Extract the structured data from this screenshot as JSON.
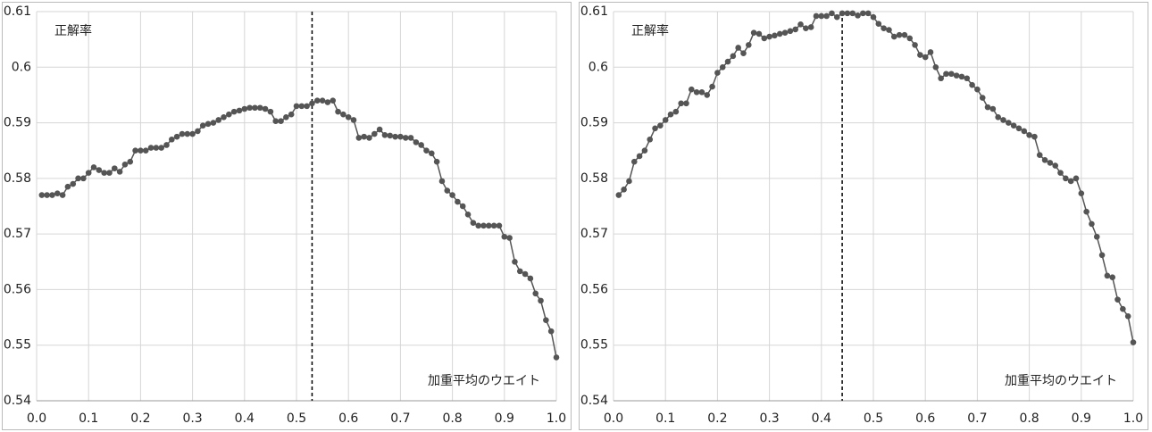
{
  "chart_data": [
    {
      "type": "line",
      "y_label": "正解率",
      "x_label": "加重平均のウエイト",
      "vline": 0.53,
      "grid": true,
      "xlim": [
        0,
        1
      ],
      "ylim": [
        0.54,
        0.61
      ],
      "xticks": [
        {
          "value": 0,
          "label": "0.0"
        },
        0.1,
        0.2,
        0.3,
        0.4,
        0.5,
        0.6,
        0.7,
        0.8,
        0.9,
        {
          "value": 1,
          "label": "1.0"
        }
      ],
      "yticks": [
        0.54,
        0.55,
        0.56,
        0.57,
        0.58,
        0.59,
        0.6,
        0.61
      ],
      "series": [
        {
          "color": "#555555",
          "x": [
            0.01,
            0.02,
            0.03,
            0.04,
            0.05,
            0.06,
            0.07,
            0.08,
            0.09,
            0.1,
            0.11,
            0.12,
            0.13,
            0.14,
            0.15,
            0.16,
            0.17,
            0.18,
            0.19,
            0.2,
            0.21,
            0.22,
            0.23,
            0.24,
            0.25,
            0.26,
            0.27,
            0.28,
            0.29,
            0.3,
            0.31,
            0.32,
            0.33,
            0.34,
            0.35,
            0.36,
            0.37,
            0.38,
            0.39,
            0.4,
            0.41,
            0.42,
            0.43,
            0.44,
            0.45,
            0.46,
            0.47,
            0.48,
            0.49,
            0.5,
            0.51,
            0.52,
            0.53,
            0.54,
            0.55,
            0.56,
            0.57,
            0.58,
            0.59,
            0.6,
            0.61,
            0.62,
            0.63,
            0.64,
            0.65,
            0.66,
            0.67,
            0.68,
            0.69,
            0.7,
            0.71,
            0.72,
            0.73,
            0.74,
            0.75,
            0.76,
            0.77,
            0.78,
            0.79,
            0.8,
            0.81,
            0.82,
            0.83,
            0.84,
            0.85,
            0.86,
            0.87,
            0.88,
            0.89,
            0.9,
            0.91,
            0.92,
            0.93,
            0.94,
            0.95,
            0.96,
            0.97,
            0.98,
            0.99,
            1.0
          ],
          "values": [
            0.577,
            0.577,
            0.577,
            0.5773,
            0.577,
            0.5785,
            0.579,
            0.58,
            0.58,
            0.581,
            0.582,
            0.5815,
            0.581,
            0.581,
            0.5818,
            0.5812,
            0.5825,
            0.583,
            0.585,
            0.585,
            0.585,
            0.5855,
            0.5855,
            0.5855,
            0.586,
            0.587,
            0.5875,
            0.588,
            0.588,
            0.588,
            0.5885,
            0.5895,
            0.5898,
            0.59,
            0.5905,
            0.591,
            0.5915,
            0.592,
            0.5922,
            0.5925,
            0.5927,
            0.5927,
            0.5927,
            0.5925,
            0.592,
            0.5903,
            0.5903,
            0.591,
            0.5915,
            0.593,
            0.593,
            0.593,
            0.5935,
            0.594,
            0.594,
            0.5937,
            0.594,
            0.592,
            0.5915,
            0.591,
            0.5905,
            0.5873,
            0.5875,
            0.5873,
            0.588,
            0.5888,
            0.5878,
            0.5877,
            0.5875,
            0.5875,
            0.5873,
            0.5873,
            0.5865,
            0.586,
            0.585,
            0.5845,
            0.583,
            0.5795,
            0.5778,
            0.577,
            0.5758,
            0.575,
            0.5735,
            0.572,
            0.5715,
            0.5715,
            0.5715,
            0.5715,
            0.5715,
            0.5695,
            0.5693,
            0.565,
            0.5633,
            0.5628,
            0.562,
            0.5593,
            0.558,
            0.5545,
            0.5525,
            0.5478
          ]
        }
      ]
    },
    {
      "type": "line",
      "y_label": "正解率",
      "x_label": "加重平均のウエイト",
      "vline": 0.44,
      "grid": true,
      "xlim": [
        0,
        1
      ],
      "ylim": [
        0.54,
        0.61
      ],
      "xticks": [
        {
          "value": 0,
          "label": "0.0"
        },
        0.1,
        0.2,
        0.3,
        0.4,
        0.5,
        0.6,
        0.7,
        0.8,
        0.9,
        {
          "value": 1,
          "label": "1.0"
        }
      ],
      "yticks": [
        0.54,
        0.55,
        0.56,
        0.57,
        0.58,
        0.59,
        0.6,
        0.61
      ],
      "series": [
        {
          "color": "#555555",
          "x": [
            0.01,
            0.02,
            0.03,
            0.04,
            0.05,
            0.06,
            0.07,
            0.08,
            0.09,
            0.1,
            0.11,
            0.12,
            0.13,
            0.14,
            0.15,
            0.16,
            0.17,
            0.18,
            0.19,
            0.2,
            0.21,
            0.22,
            0.23,
            0.24,
            0.25,
            0.26,
            0.27,
            0.28,
            0.29,
            0.3,
            0.31,
            0.32,
            0.33,
            0.34,
            0.35,
            0.36,
            0.37,
            0.38,
            0.39,
            0.4,
            0.41,
            0.42,
            0.43,
            0.44,
            0.45,
            0.46,
            0.47,
            0.48,
            0.49,
            0.5,
            0.51,
            0.52,
            0.53,
            0.54,
            0.55,
            0.56,
            0.57,
            0.58,
            0.59,
            0.6,
            0.61,
            0.62,
            0.63,
            0.64,
            0.65,
            0.66,
            0.67,
            0.68,
            0.69,
            0.7,
            0.71,
            0.72,
            0.73,
            0.74,
            0.75,
            0.76,
            0.77,
            0.78,
            0.79,
            0.8,
            0.81,
            0.82,
            0.83,
            0.84,
            0.85,
            0.86,
            0.87,
            0.88,
            0.89,
            0.9,
            0.91,
            0.92,
            0.93,
            0.94,
            0.95,
            0.96,
            0.97,
            0.98,
            0.99,
            1.0
          ],
          "values": [
            0.577,
            0.578,
            0.5795,
            0.583,
            0.584,
            0.585,
            0.587,
            0.589,
            0.5895,
            0.5905,
            0.5915,
            0.592,
            0.5935,
            0.5935,
            0.596,
            0.5955,
            0.5955,
            0.595,
            0.5965,
            0.599,
            0.6,
            0.601,
            0.602,
            0.6035,
            0.6025,
            0.604,
            0.6062,
            0.606,
            0.6052,
            0.6055,
            0.6057,
            0.606,
            0.6062,
            0.6065,
            0.6068,
            0.6077,
            0.607,
            0.6072,
            0.6092,
            0.6092,
            0.6092,
            0.6097,
            0.609,
            0.6097,
            0.6097,
            0.6097,
            0.6093,
            0.6097,
            0.6097,
            0.609,
            0.6078,
            0.607,
            0.6067,
            0.6055,
            0.6058,
            0.6058,
            0.6052,
            0.604,
            0.6022,
            0.6018,
            0.6027,
            0.6,
            0.598,
            0.5988,
            0.5988,
            0.5985,
            0.5983,
            0.598,
            0.5968,
            0.596,
            0.5945,
            0.5928,
            0.5925,
            0.591,
            0.5905,
            0.59,
            0.5895,
            0.589,
            0.5885,
            0.5878,
            0.5875,
            0.5842,
            0.5833,
            0.5828,
            0.5823,
            0.581,
            0.58,
            0.5795,
            0.58,
            0.5773,
            0.574,
            0.5718,
            0.5695,
            0.5662,
            0.5625,
            0.5622,
            0.5582,
            0.5565,
            0.5552,
            0.5505
          ]
        }
      ]
    }
  ]
}
